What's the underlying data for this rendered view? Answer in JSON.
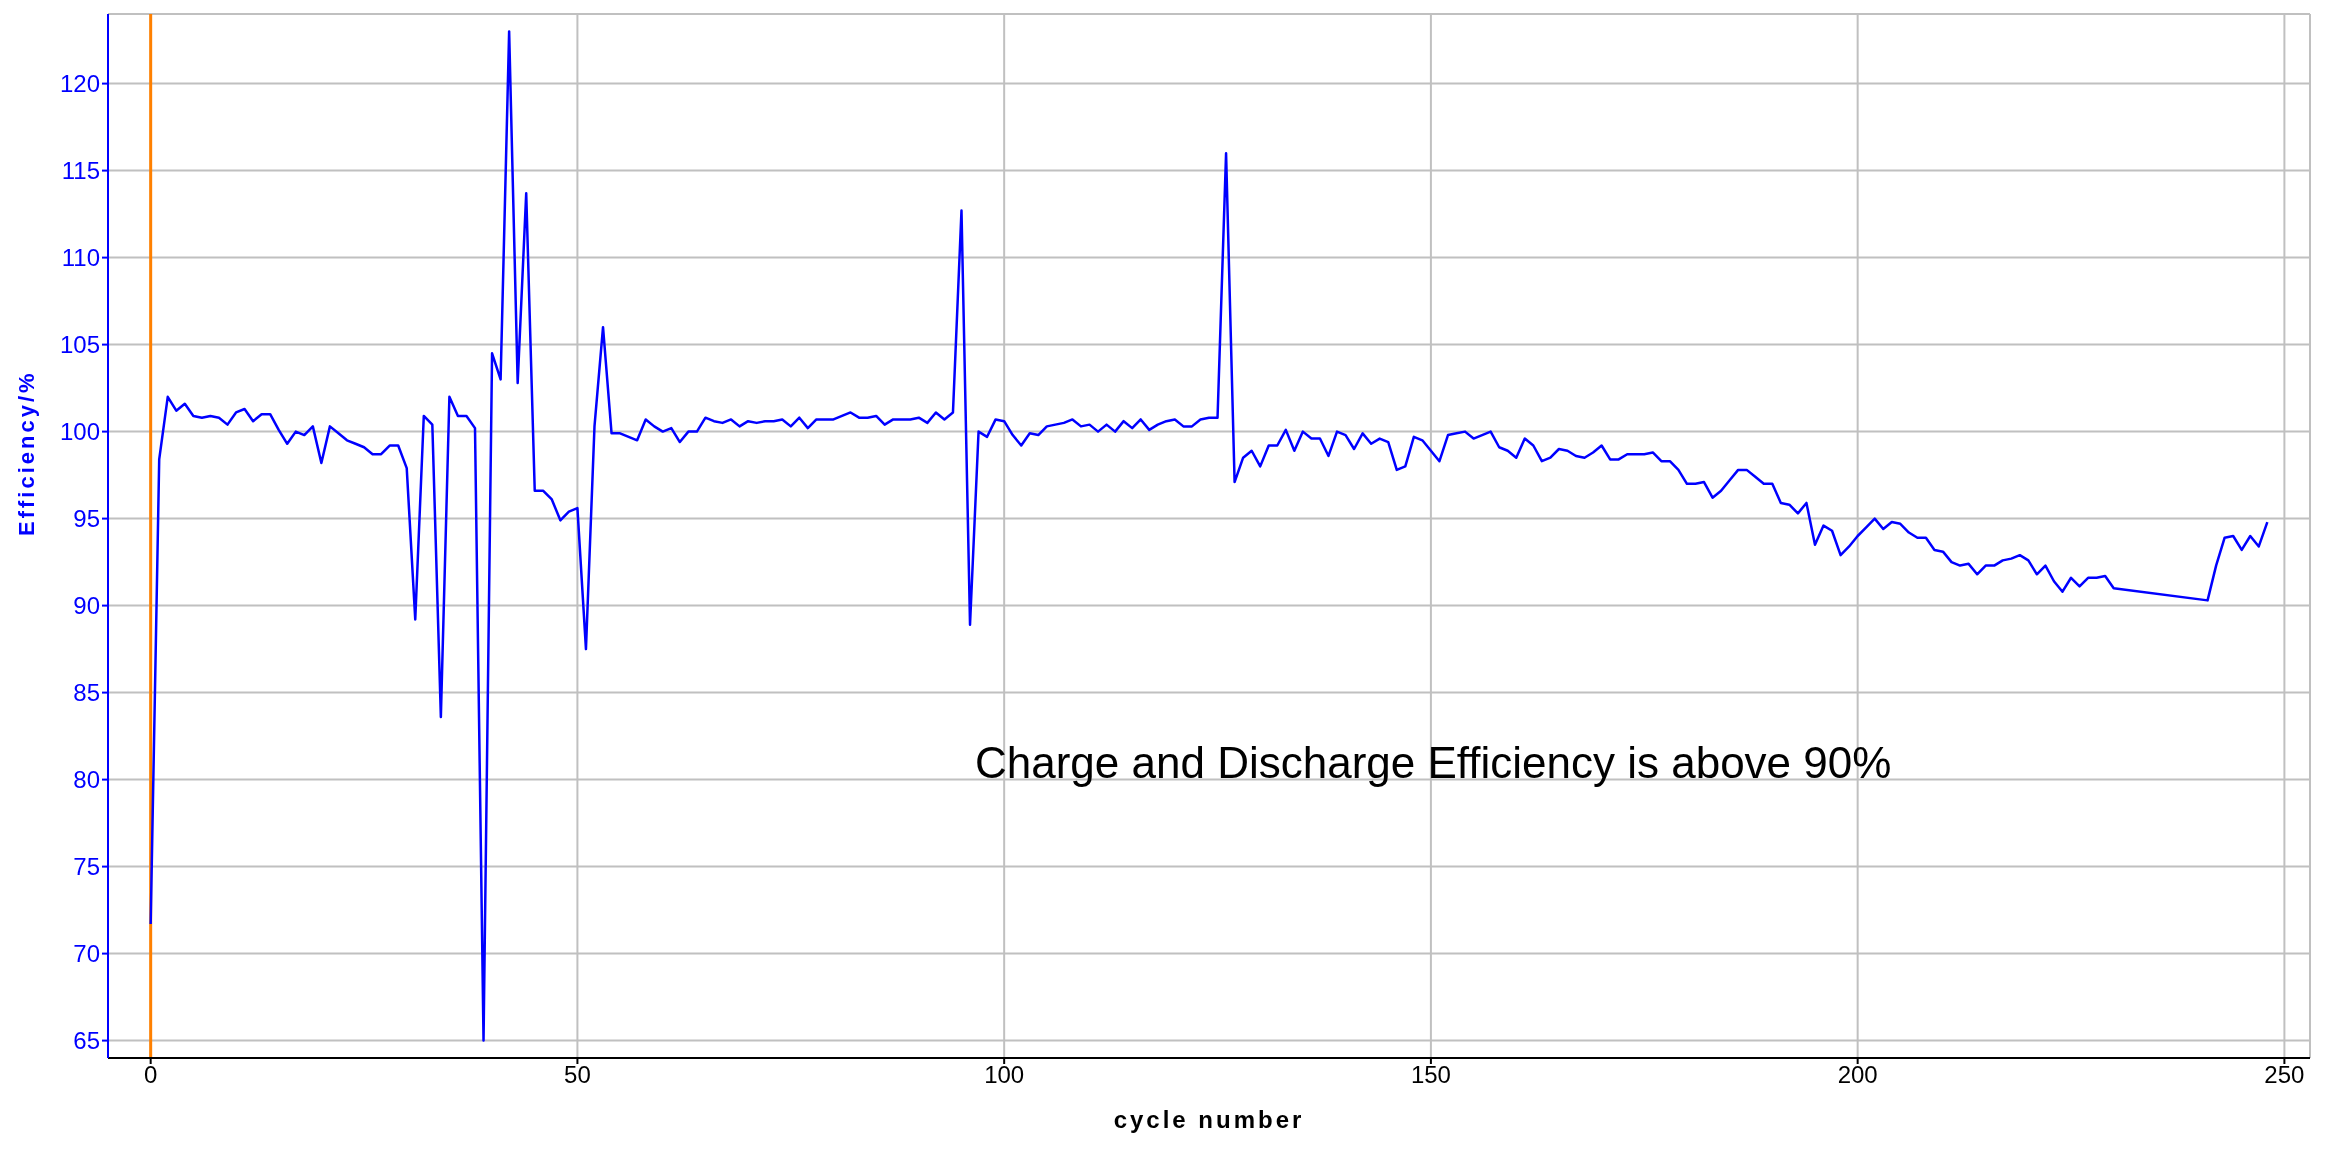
{
  "chart_data": {
    "type": "line",
    "xlabel": "cycle number",
    "ylabel": "Efficiency/%",
    "annotations": [
      "Charge and Discharge Efficiency is above 90%"
    ],
    "x": [
      0,
      1,
      2,
      3,
      4,
      5,
      6,
      7,
      8,
      9,
      10,
      11,
      12,
      13,
      14,
      15,
      16,
      17,
      18,
      19,
      20,
      21,
      22,
      23,
      24,
      25,
      26,
      27,
      28,
      29,
      30,
      31,
      32,
      33,
      34,
      35,
      36,
      37,
      38,
      39,
      40,
      41,
      42,
      43,
      44,
      45,
      46,
      47,
      48,
      49,
      50,
      51,
      52,
      53,
      54,
      55,
      56,
      57,
      58,
      59,
      60,
      61,
      62,
      63,
      64,
      65,
      66,
      67,
      68,
      69,
      70,
      71,
      72,
      73,
      74,
      75,
      76,
      77,
      78,
      79,
      80,
      81,
      82,
      83,
      84,
      85,
      86,
      87,
      88,
      89,
      90,
      91,
      92,
      93,
      94,
      95,
      96,
      97,
      98,
      99,
      100,
      101,
      102,
      103,
      104,
      105,
      106,
      107,
      108,
      109,
      110,
      111,
      112,
      113,
      114,
      115,
      116,
      117,
      118,
      119,
      120,
      121,
      122,
      123,
      124,
      125,
      126,
      127,
      128,
      129,
      130,
      131,
      132,
      133,
      134,
      135,
      136,
      137,
      138,
      139,
      140,
      141,
      142,
      143,
      144,
      145,
      146,
      147,
      148,
      149,
      150,
      151,
      152,
      153,
      154,
      155,
      156,
      157,
      158,
      159,
      160,
      161,
      162,
      163,
      164,
      165,
      166,
      167,
      168,
      169,
      170,
      171,
      172,
      173,
      174,
      175,
      176,
      177,
      178,
      179,
      180,
      181,
      182,
      183,
      184,
      185,
      186,
      187,
      188,
      189,
      190,
      191,
      192,
      193,
      194,
      195,
      196,
      197,
      198,
      199,
      200,
      201,
      202,
      203,
      204,
      205,
      206,
      207,
      208,
      209,
      210,
      211,
      212,
      213,
      214,
      215,
      216,
      217,
      218,
      219,
      220,
      221,
      222,
      223,
      224,
      225,
      226,
      227,
      228,
      229,
      230,
      241,
      242,
      243,
      244,
      245,
      246,
      247,
      248
    ],
    "series": [
      {
        "color": "#0000ff",
        "values": [
          71.7,
          98.4,
          102,
          101.2,
          101.6,
          100.9,
          100.8,
          100.9,
          100.8,
          100.4,
          101.1,
          101.3,
          100.6,
          101,
          101,
          100.1,
          99.3,
          100,
          99.8,
          100.3,
          98.2,
          100.3,
          99.9,
          99.5,
          99.3,
          99.1,
          98.7,
          98.7,
          99.2,
          99.2,
          97.9,
          89.2,
          100.9,
          100.4,
          83.6,
          102,
          100.9,
          100.9,
          100.2,
          65,
          104.5,
          103,
          123,
          102.8,
          113.7,
          96.6,
          96.6,
          96.1,
          94.9,
          95.4,
          95.6,
          87.5,
          100.3,
          106,
          99.9,
          99.9,
          99.7,
          99.5,
          100.7,
          100.3,
          100,
          100.2,
          99.4,
          100,
          100,
          100.8,
          100.6,
          100.5,
          100.7,
          100.3,
          100.6,
          100.5,
          100.6,
          100.6,
          100.7,
          100.3,
          100.8,
          100.2,
          100.7,
          100.7,
          100.7,
          100.9,
          101.1,
          100.8,
          100.8,
          100.9,
          100.4,
          100.7,
          100.7,
          100.7,
          100.8,
          100.5,
          101.1,
          100.7,
          101.1,
          112.7,
          88.9,
          100,
          99.7,
          100.7,
          100.6,
          99.8,
          99.2,
          99.9,
          99.8,
          100.3,
          100.4,
          100.5,
          100.7,
          100.3,
          100.4,
          100,
          100.4,
          100,
          100.6,
          100.2,
          100.7,
          100.1,
          100.4,
          100.6,
          100.7,
          100.3,
          100.3,
          100.7,
          100.8,
          100.8,
          116,
          97.1,
          98.5,
          98.9,
          98,
          99.2,
          99.2,
          100.1,
          98.9,
          100,
          99.6,
          99.6,
          98.6,
          100,
          99.8,
          99,
          99.9,
          99.3,
          99.6,
          99.4,
          97.8,
          98,
          99.7,
          99.5,
          98.9,
          98.3,
          99.8,
          99.9,
          100,
          99.6,
          99.8,
          100,
          99.1,
          98.9,
          98.5,
          99.6,
          99.2,
          98.3,
          98.5,
          99,
          98.9,
          98.6,
          98.5,
          98.8,
          99.2,
          98.4,
          98.4,
          98.7,
          98.7,
          98.7,
          98.8,
          98.3,
          98.3,
          97.8,
          97,
          97,
          97.1,
          96.2,
          96.6,
          97.2,
          97.8,
          97.8,
          97.4,
          97,
          97,
          95.9,
          95.8,
          95.3,
          95.9,
          93.5,
          94.6,
          94.3,
          92.9,
          93.4,
          94,
          94.5,
          95,
          94.4,
          94.8,
          94.7,
          94.2,
          93.9,
          93.9,
          93.2,
          93.1,
          92.5,
          92.3,
          92.4,
          91.8,
          92.3,
          92.3,
          92.6,
          92.7,
          92.9,
          92.6,
          91.8,
          92.3,
          91.4,
          90.8,
          91.6,
          91.1,
          91.6,
          91.6,
          91.7,
          91,
          90.3,
          92.3,
          93.9,
          94,
          93.2,
          94,
          93.4,
          94.8
        ]
      }
    ],
    "xlim": [
      -5,
      253
    ],
    "xticks": [
      0,
      50,
      100,
      150,
      200,
      250
    ],
    "ylim": [
      64,
      124
    ],
    "yticks": [
      65,
      70,
      75,
      80,
      85,
      90,
      95,
      100,
      105,
      110,
      115,
      120
    ],
    "ref_lines": [
      {
        "axis": "x",
        "value": 0,
        "color": "#ff8000"
      }
    ],
    "grid": true,
    "marker": "none",
    "line_style": "solid"
  }
}
